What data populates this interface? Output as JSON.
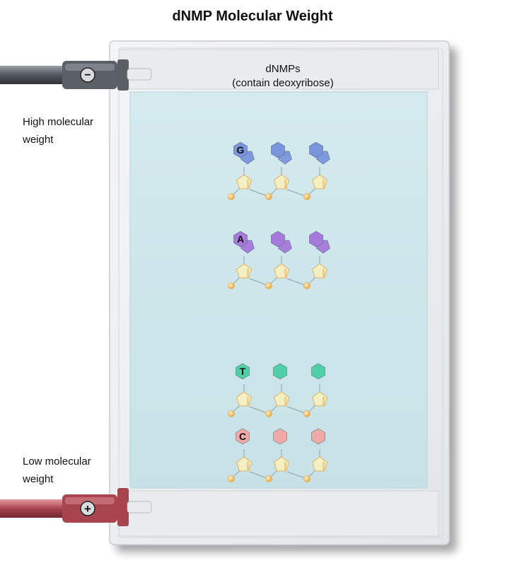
{
  "title": "dNMP Molecular Weight",
  "gel_caption_line1": "dNMPs",
  "gel_caption_line2": "(contain deoxyribose)",
  "top_label": "High molecular weight",
  "top_label_line1": "High molecular",
  "top_label_line2": "weight",
  "bottom_label_line1": "Low molecular",
  "bottom_label_line2": "weight",
  "electrodes": [
    {
      "sign": "−",
      "polarity": "negative",
      "color": "#555a60"
    },
    {
      "sign": "+",
      "polarity": "positive",
      "color": "#a8444e"
    }
  ],
  "bands": [
    {
      "letter": "G",
      "base_type": "purine",
      "color": "#7b95dd",
      "count": 3
    },
    {
      "letter": "A",
      "base_type": "purine",
      "color": "#a779db",
      "count": 3
    },
    {
      "letter": "T",
      "base_type": "pyrimidine",
      "color": "#4fcfa7",
      "count": 3
    },
    {
      "letter": "C",
      "base_type": "pyrimidine",
      "color": "#f0a9a6",
      "count": 3
    }
  ],
  "colors": {
    "gel": "#cde6ea",
    "frame": "#eef0f1",
    "sugar": "#f5f0c3",
    "sugar_edge": "#e2b060",
    "phosphate": "#f2b24a"
  }
}
